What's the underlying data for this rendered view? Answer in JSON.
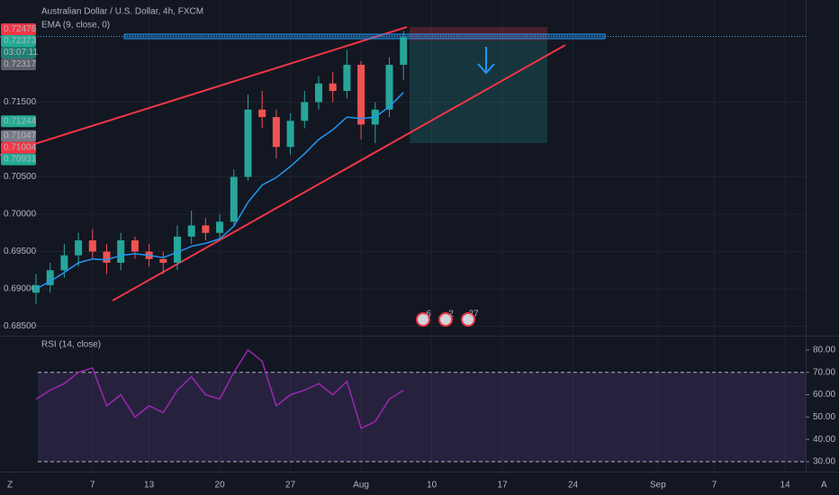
{
  "chart_data": [
    {
      "type": "candlestick",
      "title": "Australian Dollar / U.S. Dollar, 4h, FXCM",
      "x": [
        0,
        1,
        2,
        3,
        4,
        5,
        6,
        7,
        8,
        9,
        10,
        11,
        12,
        13,
        14,
        15,
        16,
        17,
        18,
        19,
        20,
        21,
        22,
        23,
        24,
        25,
        26
      ],
      "open": [
        0.6895,
        0.6905,
        0.6925,
        0.6945,
        0.6965,
        0.695,
        0.6935,
        0.6965,
        0.695,
        0.694,
        0.6935,
        0.697,
        0.6985,
        0.6975,
        0.699,
        0.705,
        0.714,
        0.713,
        0.709,
        0.7125,
        0.715,
        0.7175,
        0.7165,
        0.72,
        0.712,
        0.714,
        0.72
      ],
      "high": [
        0.692,
        0.6935,
        0.696,
        0.6975,
        0.698,
        0.696,
        0.6975,
        0.697,
        0.696,
        0.695,
        0.6985,
        0.7005,
        0.6995,
        0.7,
        0.706,
        0.716,
        0.7165,
        0.714,
        0.7135,
        0.7165,
        0.7185,
        0.719,
        0.722,
        0.7205,
        0.715,
        0.721,
        0.7245
      ],
      "low": [
        0.688,
        0.6895,
        0.6915,
        0.693,
        0.694,
        0.692,
        0.6925,
        0.694,
        0.693,
        0.692,
        0.6925,
        0.696,
        0.6965,
        0.6965,
        0.6985,
        0.7045,
        0.7115,
        0.7075,
        0.708,
        0.7115,
        0.714,
        0.715,
        0.7155,
        0.71,
        0.7095,
        0.713,
        0.718
      ],
      "close": [
        0.6905,
        0.6925,
        0.6945,
        0.6965,
        0.695,
        0.6935,
        0.6965,
        0.695,
        0.694,
        0.6935,
        0.697,
        0.6985,
        0.6975,
        0.699,
        0.705,
        0.714,
        0.713,
        0.709,
        0.7125,
        0.715,
        0.7175,
        0.7165,
        0.72,
        0.712,
        0.714,
        0.72,
        0.7237
      ],
      "up_color": "#26a69a",
      "down_color": "#ef5350",
      "series": [
        {
          "name": "EMA (9, close, 0)",
          "color": "#2196f3",
          "values": [
            0.69,
            0.691,
            0.6922,
            0.6935,
            0.694,
            0.6939,
            0.6945,
            0.6947,
            0.6945,
            0.6942,
            0.6949,
            0.6957,
            0.6961,
            0.6967,
            0.6984,
            0.7016,
            0.7039,
            0.7049,
            0.7064,
            0.7081,
            0.71,
            0.7113,
            0.713,
            0.7128,
            0.713,
            0.7144,
            0.7163
          ]
        }
      ],
      "xlim": [
        -2.548,
        54.46
      ],
      "xticks": [
        {
          "value": 4,
          "label": "7"
        },
        {
          "value": 8,
          "label": "13"
        },
        {
          "value": 13,
          "label": "20"
        },
        {
          "value": 18,
          "label": "27"
        },
        {
          "value": 23,
          "label": "Aug"
        },
        {
          "value": 28,
          "label": "10"
        },
        {
          "value": 33,
          "label": "17"
        },
        {
          "value": 38,
          "label": "24"
        },
        {
          "value": 44,
          "label": "Sep"
        },
        {
          "value": 48,
          "label": "7"
        },
        {
          "value": 53,
          "label": "14"
        }
      ],
      "ylim": [
        0.68386,
        0.72867
      ],
      "yticks": [
        {
          "value": 0.685,
          "label": "0.68500"
        },
        {
          "value": 0.69,
          "label": "0.69000"
        },
        {
          "value": 0.695,
          "label": "0.69500"
        },
        {
          "value": 0.7,
          "label": "0.70000"
        },
        {
          "value": 0.705,
          "label": "0.70500"
        },
        {
          "value": 0.715,
          "label": "0.71500"
        }
      ],
      "grid": true,
      "price_labels": [
        {
          "value": 0.72476,
          "color": "#f23645"
        },
        {
          "value": 0.72373,
          "color": "#22ab94"
        },
        {
          "label": "03:07:11",
          "color": "#1e7f72"
        },
        {
          "value": 0.72317,
          "color": "#5d606b"
        },
        {
          "value": 0.71244,
          "color": "#22ab94"
        },
        {
          "value": 0.71047,
          "color": "#787b86"
        },
        {
          "value": 0.71004,
          "color": "#f23645"
        },
        {
          "value": 0.70931,
          "color": "#22ab94"
        }
      ],
      "events": [
        "6",
        "2",
        "27"
      ]
    },
    {
      "type": "line",
      "title": "RSI (14, close)",
      "x": [
        0,
        1,
        2,
        3,
        4,
        5,
        6,
        7,
        8,
        9,
        10,
        11,
        12,
        13,
        14,
        15,
        16,
        17,
        18,
        19,
        20,
        21,
        22,
        23,
        24,
        25,
        26
      ],
      "series": [
        {
          "color": "#9c27b0",
          "values": [
            58,
            62,
            65,
            70,
            72,
            55,
            60,
            50,
            55,
            52,
            62,
            68,
            60,
            58,
            70,
            80,
            75,
            55,
            60,
            62,
            65,
            60,
            66,
            45,
            48,
            58,
            62
          ]
        }
      ],
      "ylim": [
        26.4,
        85.6
      ],
      "yticks": [
        {
          "value": 80,
          "label": "80.00"
        },
        {
          "value": 70,
          "label": "70.00"
        },
        {
          "value": 60,
          "label": "60.00"
        },
        {
          "value": 50,
          "label": "50.00"
        },
        {
          "value": 40,
          "label": "40.00"
        },
        {
          "value": 30,
          "label": "30.00"
        }
      ],
      "bands": [
        70,
        30
      ]
    }
  ],
  "corner_left": "Z",
  "corner_right": "A"
}
